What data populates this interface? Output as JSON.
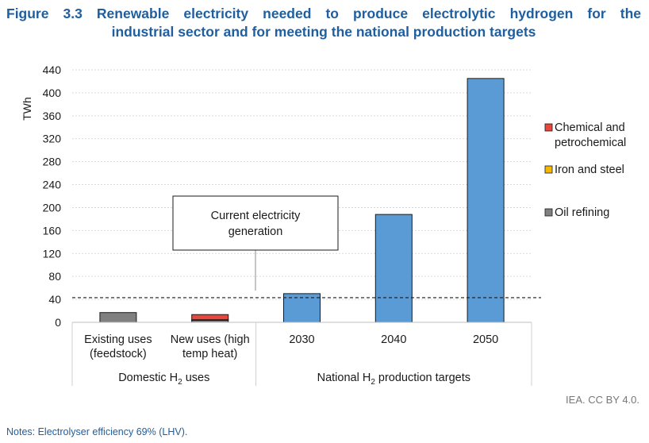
{
  "figure": {
    "title_line1": "Figure 3.3 Renewable electricity needed to produce electrolytic hydrogen for the",
    "title_line2": "industrial sector and for meeting the national production targets",
    "source": "IEA. CC BY 4.0.",
    "notes": "Notes: Electrolyser efficiency 69% (LHV)."
  },
  "chart_data": {
    "type": "bar",
    "stacked": true,
    "ylabel": "TWh",
    "ylim": [
      0,
      440
    ],
    "yticks": [
      0,
      40,
      80,
      120,
      160,
      200,
      240,
      280,
      320,
      360,
      400,
      440
    ],
    "grid": true,
    "legend_position": "right",
    "categories": [
      {
        "line1": "Existing uses",
        "line2": "(feedstock)"
      },
      {
        "line1": "New uses (high",
        "line2": "temp heat)"
      },
      {
        "line1": "2030",
        "line2": ""
      },
      {
        "line1": "2040",
        "line2": ""
      },
      {
        "line1": "2050",
        "line2": ""
      }
    ],
    "groups": [
      {
        "label_pre": "Domestic H",
        "label_sub": "2",
        "label_post": " uses",
        "start": 0,
        "end": 1
      },
      {
        "label_pre": "National H",
        "label_sub": "2",
        "label_post": " production targets",
        "start": 2,
        "end": 4
      }
    ],
    "series": [
      {
        "name": "Oil refining",
        "color": "#808080",
        "values": [
          17,
          4,
          0,
          0,
          0
        ],
        "legend": true
      },
      {
        "name": "Iron and steel",
        "color": "#f5b800",
        "values": [
          0,
          0.5,
          0,
          0,
          0
        ],
        "legend": true
      },
      {
        "name": "Chemical and petrochemical",
        "color": "#e8473c",
        "values": [
          0,
          9,
          0,
          0,
          0
        ],
        "legend": true
      },
      {
        "name": "",
        "color": "#5b9bd5",
        "values": [
          0,
          0,
          50,
          188,
          425
        ],
        "legend": false
      }
    ],
    "legend": [
      {
        "line1": "Chemical and",
        "line2": "petrochemical",
        "color": "#e8473c"
      },
      {
        "line1": "Iron and steel",
        "line2": "",
        "color": "#f5b800"
      },
      {
        "line1": "Oil refining",
        "line2": "",
        "color": "#808080"
      }
    ],
    "reference_line": {
      "value": 43,
      "label_line1": "Current electricity",
      "label_line2": "generation"
    }
  }
}
